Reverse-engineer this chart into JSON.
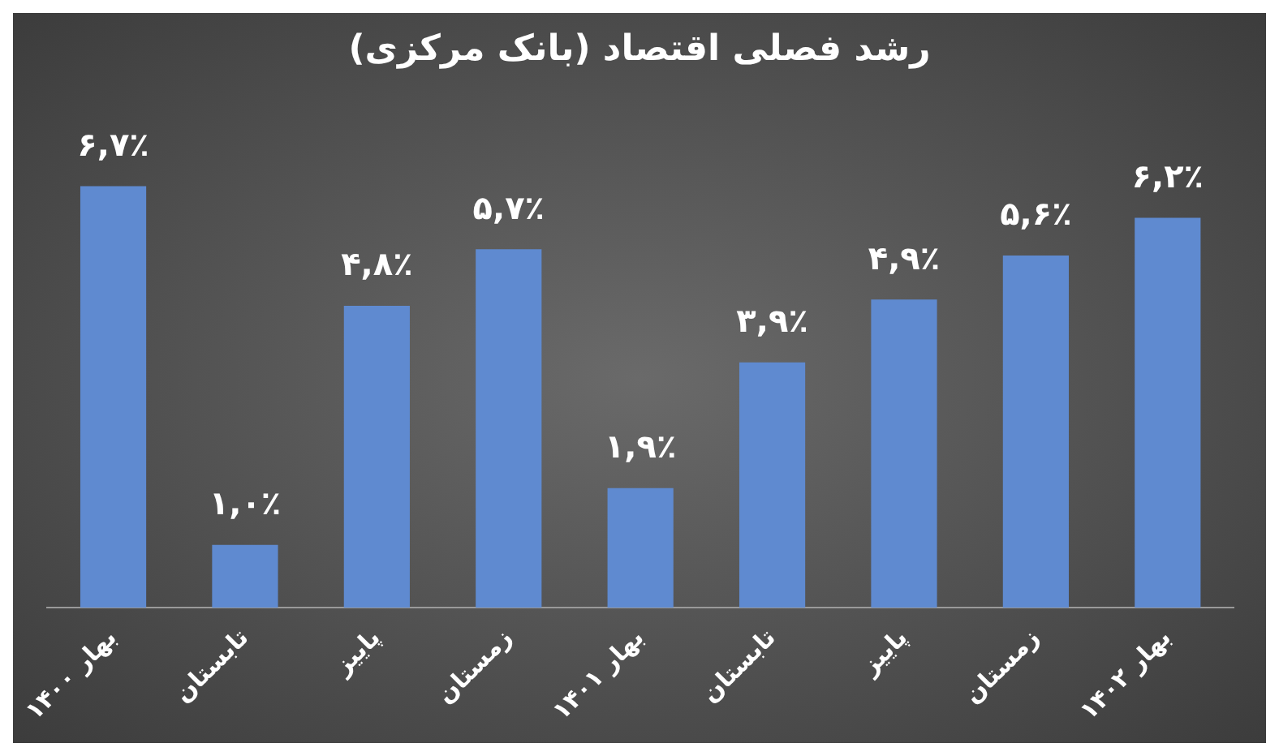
{
  "chart_data": {
    "type": "bar",
    "title": "رشد فصلی اقتصاد (بانک مرکزی)",
    "categories": [
      "بهار ۱۴۰۰",
      "تابستان",
      "پاییز",
      "زمستان",
      "بهار ۱۴۰۱",
      "تابستان",
      "پاییز",
      "زمستان",
      "بهار ۱۴۰۲"
    ],
    "values": [
      6.7,
      1.0,
      4.8,
      5.7,
      1.9,
      3.9,
      4.9,
      5.6,
      6.2
    ],
    "value_labels": [
      "۶,۷٪",
      "۱,۰٪",
      "۴,۸٪",
      "۵,۷٪",
      "۱,۹٪",
      "۳,۹٪",
      "۴,۹٪",
      "۵,۶٪",
      "۶,۲٪"
    ],
    "color": "#5f8ad0",
    "grid": false,
    "legend": false
  }
}
